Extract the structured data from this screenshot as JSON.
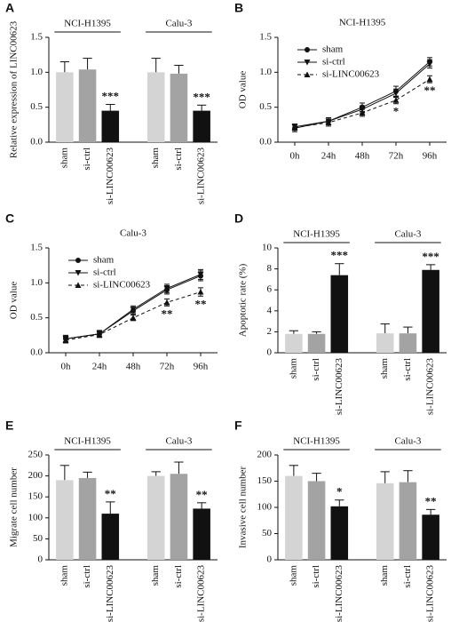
{
  "chart_data": [
    {
      "type": "bar",
      "label": "A",
      "ylabel": "Relative expression of LINC00623",
      "groups": [
        "NCI-H1395",
        "Calu-3"
      ],
      "categories": [
        "sham",
        "si-ctrl",
        "si-LINC00623",
        "sham",
        "si-ctrl",
        "si-LINC00623"
      ],
      "values": [
        1.0,
        1.04,
        0.45,
        1.0,
        0.98,
        0.45
      ],
      "errors": [
        0.15,
        0.16,
        0.09,
        0.2,
        0.12,
        0.08
      ],
      "colors": [
        "#d4d4d4",
        "#a3a3a3",
        "#111111",
        "#d4d4d4",
        "#a3a3a3",
        "#111111"
      ],
      "annotations": [
        {
          "at": 2,
          "text": "***"
        },
        {
          "at": 5,
          "text": "***"
        }
      ],
      "ylim": [
        0,
        1.5
      ],
      "yticks": [
        {
          "value": 0,
          "label": "0.0"
        },
        0.5,
        {
          "value": 1,
          "label": "1.0"
        },
        1.5
      ]
    },
    {
      "type": "line",
      "label": "B",
      "title": "NCI-H1395",
      "ylabel": "OD value",
      "categories": [
        "0h",
        "24h",
        "48h",
        "72h",
        "96h"
      ],
      "series": [
        {
          "name": "sham",
          "color": "#111111",
          "marker": "circle",
          "values": [
            0.2,
            0.3,
            0.5,
            0.73,
            1.15
          ],
          "errors": [
            0.05,
            0.05,
            0.06,
            0.07,
            0.06
          ]
        },
        {
          "name": "si-ctrl",
          "color": "#111111",
          "marker": "down",
          "values": [
            0.22,
            0.3,
            0.47,
            0.7,
            1.12
          ],
          "errors": [
            0.04,
            0.05,
            0.05,
            0.06,
            0.06
          ]
        },
        {
          "name": "si-LINC00623",
          "color": "#111111",
          "marker": "up",
          "dash": true,
          "values": [
            0.21,
            0.28,
            0.42,
            0.6,
            0.9
          ],
          "errors": [
            0.04,
            0.05,
            0.05,
            0.05,
            0.05
          ]
        }
      ],
      "annotations": [
        {
          "at": 3,
          "text": "*"
        },
        {
          "at": 4,
          "text": "**"
        }
      ],
      "ylim": [
        0,
        1.5
      ],
      "yticks": [
        {
          "value": 0,
          "label": "0.0"
        },
        0.5,
        {
          "value": 1,
          "label": "1.0"
        },
        1.5
      ]
    },
    {
      "type": "line",
      "label": "C",
      "title": "Calu-3",
      "ylabel": "OD value",
      "categories": [
        "0h",
        "24h",
        "48h",
        "72h",
        "96h"
      ],
      "series": [
        {
          "name": "sham",
          "color": "#111111",
          "marker": "circle",
          "values": [
            0.2,
            0.27,
            0.6,
            0.9,
            1.1
          ],
          "errors": [
            0.05,
            0.05,
            0.05,
            0.06,
            0.07
          ]
        },
        {
          "name": "si-ctrl",
          "color": "#111111",
          "marker": "down",
          "values": [
            0.2,
            0.27,
            0.62,
            0.92,
            1.12
          ],
          "errors": [
            0.04,
            0.04,
            0.05,
            0.06,
            0.07
          ]
        },
        {
          "name": "si-LINC00623",
          "color": "#111111",
          "marker": "up",
          "dash": true,
          "values": [
            0.18,
            0.26,
            0.5,
            0.72,
            0.87
          ],
          "errors": [
            0.04,
            0.04,
            0.04,
            0.05,
            0.06
          ]
        }
      ],
      "annotations": [
        {
          "at": 3,
          "text": "**"
        },
        {
          "at": 4,
          "text": "**"
        }
      ],
      "ylim": [
        0,
        1.5
      ],
      "yticks": [
        {
          "value": 0,
          "label": "0.0"
        },
        0.5,
        {
          "value": 1,
          "label": "1.0"
        },
        1.5
      ]
    },
    {
      "type": "bar",
      "label": "D",
      "ylabel": "Apoptotic rate (%)",
      "groups": [
        "NCI-H1395",
        "Calu-3"
      ],
      "categories": [
        "sham",
        "si-ctrl",
        "si-LINC00623",
        "sham",
        "si-ctrl",
        "si-LINC00623"
      ],
      "values": [
        1.8,
        1.8,
        7.4,
        1.85,
        1.85,
        7.9
      ],
      "errors": [
        0.3,
        0.2,
        1.1,
        0.9,
        0.6,
        0.5
      ],
      "colors": [
        "#d4d4d4",
        "#a3a3a3",
        "#111111",
        "#d4d4d4",
        "#a3a3a3",
        "#111111"
      ],
      "annotations": [
        {
          "at": 2,
          "text": "***"
        },
        {
          "at": 5,
          "text": "***"
        }
      ],
      "ylim": [
        0,
        10
      ],
      "yticks": [
        0,
        2,
        4,
        6,
        8,
        10
      ]
    },
    {
      "type": "bar",
      "label": "E",
      "ylabel": "Migrate cell number",
      "groups": [
        "NCI-H1395",
        "Calu-3"
      ],
      "categories": [
        "sham",
        "si-ctrl",
        "si-LINC00623",
        "sham",
        "si-ctrl",
        "si-LINC00623"
      ],
      "values": [
        190,
        195,
        110,
        200,
        205,
        122
      ],
      "errors": [
        35,
        14,
        28,
        10,
        28,
        14
      ],
      "colors": [
        "#d4d4d4",
        "#a3a3a3",
        "#111111",
        "#d4d4d4",
        "#a3a3a3",
        "#111111"
      ],
      "annotations": [
        {
          "at": 2,
          "text": "**"
        },
        {
          "at": 5,
          "text": "**"
        }
      ],
      "ylim": [
        0,
        250
      ],
      "yticks": [
        0,
        50,
        100,
        150,
        200,
        250
      ]
    },
    {
      "type": "bar",
      "label": "F",
      "ylabel": "Invasive cell number",
      "groups": [
        "NCI-H1395",
        "Calu-3"
      ],
      "categories": [
        "sham",
        "si-ctrl",
        "si-LINC00623",
        "sham",
        "si-ctrl",
        "si-LINC00623"
      ],
      "values": [
        160,
        150,
        102,
        146,
        148,
        86
      ],
      "errors": [
        20,
        15,
        12,
        22,
        22,
        10
      ],
      "colors": [
        "#d4d4d4",
        "#a3a3a3",
        "#111111",
        "#d4d4d4",
        "#a3a3a3",
        "#111111"
      ],
      "annotations": [
        {
          "at": 2,
          "text": "*"
        },
        {
          "at": 5,
          "text": "**"
        }
      ],
      "ylim": [
        0,
        200
      ],
      "yticks": [
        0,
        50,
        100,
        150,
        200
      ]
    }
  ]
}
